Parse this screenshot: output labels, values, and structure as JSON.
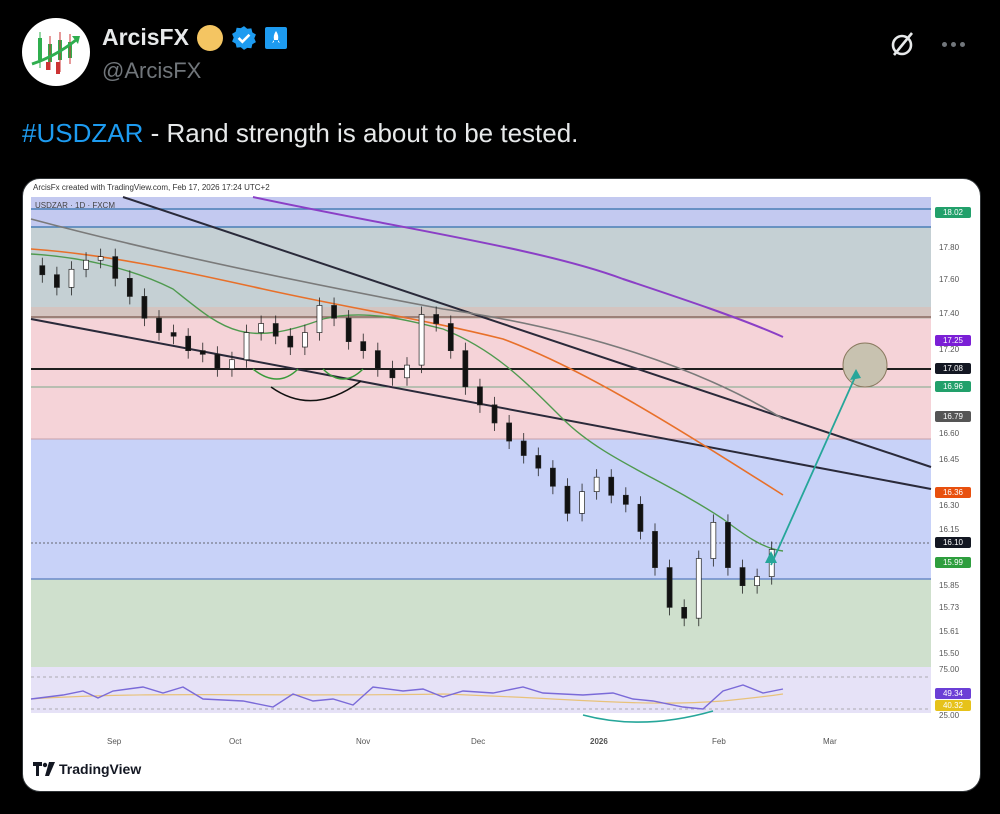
{
  "post": {
    "author_name": "ArcisFX",
    "author_handle": "@ArcisFX",
    "hashtag": "#USDZAR",
    "text": " - Rand strength is about to be tested."
  },
  "icons": {
    "avatar": "candlestick-logo",
    "gold_badge": "gold-circle-badge",
    "verified": "verified-badge-icon",
    "affiliate": "rocket-badge-icon",
    "grok": "grok-icon",
    "more": "more-icon"
  },
  "colors": {
    "hashtag": "#1d9bf0",
    "background": "#000000",
    "handle": "#71767b"
  },
  "chart": {
    "caption": "ArcisFx created with TradingView.com, Feb 17, 2026 17:24 UTC+2",
    "symbol": "USDZAR · 1D · FXCM",
    "watermark": "TradingView",
    "price_axis": [
      "17.80",
      "17.60",
      "17.40",
      "17.20",
      "16.60",
      "16.45",
      "16.30",
      "16.15",
      "15.85",
      "15.73",
      "15.61",
      "15.50"
    ],
    "rsi_axis": [
      "75.00",
      "25.00"
    ],
    "time_axis": [
      "Sep",
      "Oct",
      "Nov",
      "Dec",
      "2026",
      "Feb",
      "Mar"
    ],
    "price_tags": [
      {
        "value": "18.02",
        "color": "#22a06b",
        "y": 28
      },
      {
        "value": "17.25",
        "color": "#7b1fd6",
        "y": 156
      },
      {
        "value": "17.08",
        "color": "#131722",
        "y": 184
      },
      {
        "value": "16.96",
        "color": "#22a06b",
        "y": 202
      },
      {
        "value": "16.79",
        "color": "#555555",
        "y": 232
      },
      {
        "value": "16.36",
        "color": "#e8500e",
        "y": 308
      },
      {
        "value": "16.10",
        "color": "#131722",
        "y": 358
      },
      {
        "value": "15.99",
        "color": "#2e9e3e",
        "y": 378
      },
      {
        "value": "49.34",
        "color": "#6b3fd6",
        "y": 509
      },
      {
        "value": "40.32",
        "color": "#e6c21a",
        "y": 521
      }
    ]
  },
  "chart_data": {
    "type": "candlestick",
    "title": "USDZAR · 1D · FXCM",
    "x": [
      "Sep",
      "Oct",
      "Nov",
      "Dec",
      "2026",
      "Feb",
      "Mar"
    ],
    "ylim": [
      15.45,
      18.05
    ],
    "levels": [
      18.02,
      17.25,
      17.08,
      16.96,
      16.79,
      16.36,
      16.1,
      15.99
    ],
    "annotation": "Arrow projecting from ~15.99 up to target circle near 17.08",
    "indicators": [
      "MA (green)",
      "MA (orange)",
      "MA (grey)",
      "MA (purple)",
      "RSI 49.34",
      "RSI MA 40.32"
    ],
    "closes": [
      17.62,
      17.55,
      17.65,
      17.7,
      17.72,
      17.6,
      17.5,
      17.38,
      17.3,
      17.28,
      17.2,
      17.18,
      17.1,
      17.15,
      17.3,
      17.35,
      17.28,
      17.22,
      17.3,
      17.45,
      17.38,
      17.25,
      17.2,
      17.1,
      17.05,
      17.12,
      17.4,
      17.35,
      17.2,
      17.0,
      16.9,
      16.8,
      16.7,
      16.62,
      16.55,
      16.45,
      16.3,
      16.42,
      16.5,
      16.4,
      16.35,
      16.2,
      16.0,
      15.78,
      15.72,
      16.05,
      16.25,
      16.0,
      15.9,
      15.95,
      16.1
    ]
  }
}
